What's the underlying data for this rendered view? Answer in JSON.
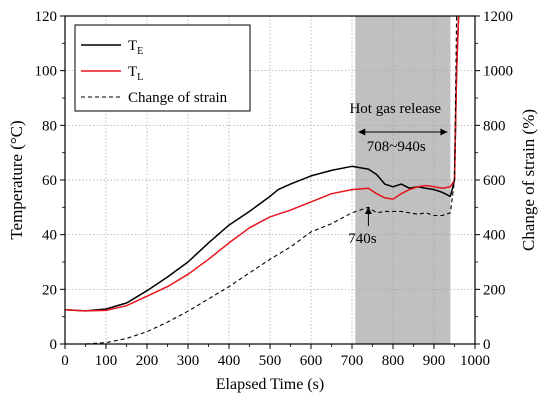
{
  "chart_data": {
    "type": "line",
    "xlabel": "Elapsed Time (s)",
    "ylabel_left": "Temperature (°C)",
    "ylabel_right": "Change of strain (%)",
    "xlim": [
      0,
      1000
    ],
    "ylim_left": [
      0,
      120
    ],
    "ylim_right": [
      0,
      1200
    ],
    "x_ticks": [
      0,
      100,
      200,
      300,
      400,
      500,
      600,
      700,
      800,
      900,
      1000
    ],
    "y_left_ticks": [
      0,
      20,
      40,
      60,
      80,
      100,
      120
    ],
    "y_right_ticks": [
      0,
      200,
      400,
      600,
      800,
      1000,
      1200
    ],
    "grid": true,
    "legend_position": "top-left",
    "legend": [
      {
        "base": "T",
        "sub": "E",
        "color": "#000000",
        "dash": "solid"
      },
      {
        "base": "T",
        "sub": "L",
        "color": "#e8141b",
        "dash": "solid"
      },
      {
        "base": "Change of strain",
        "sub": "",
        "color": "#000000",
        "dash": "dashed"
      }
    ],
    "shaded_region": {
      "x_start": 708,
      "x_end": 940,
      "color": "#c0c0c0"
    },
    "annotations": {
      "region_label": "Hot gas release",
      "range_label": "708~940s",
      "point_label": "740s",
      "point_x": 740
    },
    "series": [
      {
        "key": "TE",
        "axis": "left",
        "color": "#000000",
        "dash": "solid",
        "x": [
          0,
          50,
          100,
          150,
          200,
          250,
          300,
          350,
          400,
          450,
          500,
          520,
          550,
          600,
          650,
          700,
          720,
          740,
          760,
          780,
          800,
          820,
          840,
          860,
          880,
          900,
          920,
          940,
          950,
          955,
          960
        ],
        "y": [
          12.5,
          12.1,
          12.8,
          15.0,
          19.5,
          24.5,
          30.0,
          37.0,
          43.5,
          48.5,
          54.0,
          56.5,
          58.5,
          61.5,
          63.5,
          65.0,
          64.5,
          64.0,
          62.0,
          58.5,
          57.5,
          58.5,
          57.0,
          57.5,
          57.0,
          56.5,
          55.5,
          54.0,
          60.0,
          100.0,
          120.0
        ]
      },
      {
        "key": "TL",
        "axis": "left",
        "color": "#e8141b",
        "dash": "solid",
        "x": [
          0,
          50,
          100,
          150,
          200,
          250,
          300,
          350,
          400,
          450,
          500,
          550,
          600,
          650,
          700,
          740,
          760,
          780,
          800,
          820,
          840,
          860,
          880,
          900,
          920,
          940,
          950,
          955,
          960
        ],
        "y": [
          12.5,
          12.1,
          12.3,
          14.0,
          17.5,
          21.0,
          25.5,
          31.0,
          37.0,
          42.5,
          46.5,
          49.0,
          52.0,
          55.0,
          56.5,
          57.0,
          55.0,
          53.5,
          53.0,
          55.0,
          56.5,
          57.5,
          58.0,
          57.5,
          57.0,
          57.5,
          60.0,
          100.0,
          120.0
        ]
      },
      {
        "key": "Strain",
        "axis": "right",
        "color": "#000000",
        "dash": "dashed",
        "x": [
          0,
          50,
          100,
          150,
          200,
          250,
          300,
          350,
          400,
          450,
          500,
          550,
          600,
          650,
          700,
          720,
          740,
          760,
          780,
          800,
          820,
          840,
          860,
          880,
          900,
          920,
          940,
          950,
          955
        ],
        "y": [
          0,
          0,
          5,
          20,
          45,
          80,
          120,
          165,
          210,
          260,
          310,
          355,
          410,
          440,
          480,
          490,
          500,
          480,
          485,
          485,
          485,
          480,
          475,
          480,
          470,
          470,
          480,
          600,
          1200
        ]
      }
    ]
  }
}
